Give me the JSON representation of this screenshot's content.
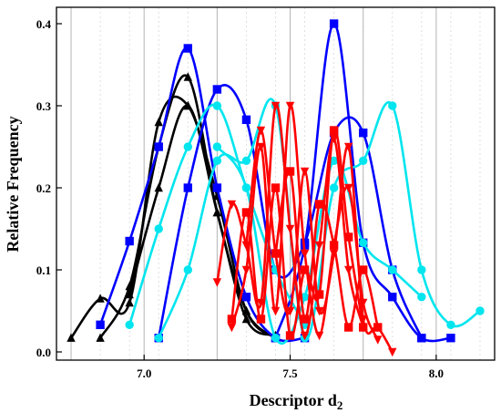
{
  "chart_data": {
    "type": "line",
    "xlabel": "Descriptor d",
    "xlabel_sub": "2",
    "ylabel": "Relative Frequency",
    "xlim": [
      6.7,
      8.2
    ],
    "ylim": [
      -0.01,
      0.42
    ],
    "x_ticks": [
      "7.0",
      "7.5",
      "8.0"
    ],
    "x_tick_values": [
      7.0,
      7.5,
      8.0
    ],
    "y_ticks": [
      "0.0",
      "0.1",
      "0.2",
      "0.3",
      "0.4"
    ],
    "y_tick_values": [
      0.0,
      0.1,
      0.2,
      0.3,
      0.4
    ],
    "grid": "vertical",
    "series": [
      {
        "color": "#000000",
        "marker": "triangle-up",
        "x": [
          6.75,
          6.85,
          6.95,
          7.05,
          7.15,
          7.25,
          7.35,
          7.45
        ],
        "y": [
          0.017,
          0.065,
          0.06,
          0.28,
          0.3,
          0.19,
          0.05,
          0.017
        ]
      },
      {
        "color": "#000000",
        "marker": "triangle-up",
        "x": [
          6.85,
          6.95,
          7.05,
          7.15,
          7.25,
          7.35,
          7.45
        ],
        "y": [
          0.017,
          0.08,
          0.25,
          0.335,
          0.17,
          0.05,
          0.017
        ]
      },
      {
        "color": "#000000",
        "marker": "triangle-up",
        "x": [
          6.95,
          7.05,
          7.15,
          7.25,
          7.35,
          7.45
        ],
        "y": [
          0.07,
          0.2,
          0.3,
          0.17,
          0.04,
          0.02
        ]
      },
      {
        "color": "#0000ff",
        "marker": "square",
        "x": [
          6.85,
          6.95,
          7.05,
          7.15,
          7.25,
          7.35,
          7.45,
          7.55
        ],
        "y": [
          0.033,
          0.135,
          0.25,
          0.37,
          0.2,
          0.067,
          0.017,
          0.017
        ]
      },
      {
        "color": "#0000ff",
        "marker": "square",
        "x": [
          7.05,
          7.15,
          7.25,
          7.35,
          7.45,
          7.55,
          7.65,
          7.75,
          7.85,
          7.95
        ],
        "y": [
          0.017,
          0.2,
          0.32,
          0.283,
          0.1,
          0.133,
          0.267,
          0.267,
          0.1,
          0.017
        ]
      },
      {
        "color": "#0000ff",
        "marker": "square",
        "x": [
          7.45,
          7.55,
          7.65,
          7.75,
          7.85,
          7.95,
          8.05
        ],
        "y": [
          0.017,
          0.13,
          0.4,
          0.133,
          0.067,
          0.017,
          0.017
        ]
      },
      {
        "color": "#00e5ee",
        "marker": "circle",
        "x": [
          6.95,
          7.05,
          7.15,
          7.25,
          7.35,
          7.45,
          7.55
        ],
        "y": [
          0.033,
          0.15,
          0.25,
          0.3,
          0.2,
          0.1,
          0.033
        ]
      },
      {
        "color": "#00e5ee",
        "marker": "circle",
        "x": [
          7.05,
          7.15,
          7.25,
          7.35,
          7.45,
          7.55,
          7.65,
          7.75,
          7.85,
          7.95,
          8.05,
          8.15
        ],
        "y": [
          0.017,
          0.1,
          0.233,
          0.233,
          0.3,
          0.017,
          0.2,
          0.233,
          0.3,
          0.1,
          0.033,
          0.05
        ]
      },
      {
        "color": "#00e5ee",
        "marker": "circle",
        "x": [
          7.25,
          7.35,
          7.45,
          7.55,
          7.65,
          7.75,
          7.85,
          7.95
        ],
        "y": [
          0.25,
          0.2,
          0.017,
          0.067,
          0.233,
          0.133,
          0.1,
          0.067
        ]
      },
      {
        "color": "#ff0000",
        "marker": "triangle-down",
        "x": [
          7.25,
          7.3,
          7.35,
          7.4,
          7.45,
          7.5,
          7.55,
          7.6,
          7.65,
          7.7,
          7.75
        ],
        "y": [
          0.085,
          0.18,
          0.13,
          0.06,
          0.3,
          0.15,
          0.02,
          0.13,
          0.26,
          0.1,
          0.03
        ]
      },
      {
        "color": "#ff0000",
        "marker": "triangle-down",
        "x": [
          7.3,
          7.35,
          7.4,
          7.45,
          7.5,
          7.55,
          7.6,
          7.65,
          7.7,
          7.75,
          7.8
        ],
        "y": [
          0.03,
          0.1,
          0.25,
          0.05,
          0.3,
          0.12,
          0.02,
          0.13,
          0.2,
          0.06,
          0.015
        ]
      },
      {
        "color": "#ff0000",
        "marker": "triangle-down",
        "x": [
          7.35,
          7.4,
          7.45,
          7.5,
          7.55,
          7.6,
          7.65,
          7.7,
          7.75,
          7.8,
          7.85
        ],
        "y": [
          0.13,
          0.27,
          0.12,
          0.05,
          0.22,
          0.05,
          0.12,
          0.25,
          0.04,
          0.03,
          0.0
        ]
      },
      {
        "color": "#ff0000",
        "marker": "square",
        "x": [
          7.3,
          7.35,
          7.4,
          7.45,
          7.5,
          7.55,
          7.6,
          7.65,
          7.7,
          7.75
        ],
        "y": [
          0.04,
          0.17,
          0.04,
          0.2,
          0.02,
          0.1,
          0.07,
          0.27,
          0.14,
          0.03
        ]
      },
      {
        "color": "#ff0000",
        "marker": "square",
        "x": [
          7.45,
          7.5,
          7.55,
          7.6,
          7.65,
          7.7,
          7.75,
          7.8
        ],
        "y": [
          0.12,
          0.22,
          0.04,
          0.18,
          0.13,
          0.03,
          0.1,
          0.03
        ]
      }
    ]
  }
}
